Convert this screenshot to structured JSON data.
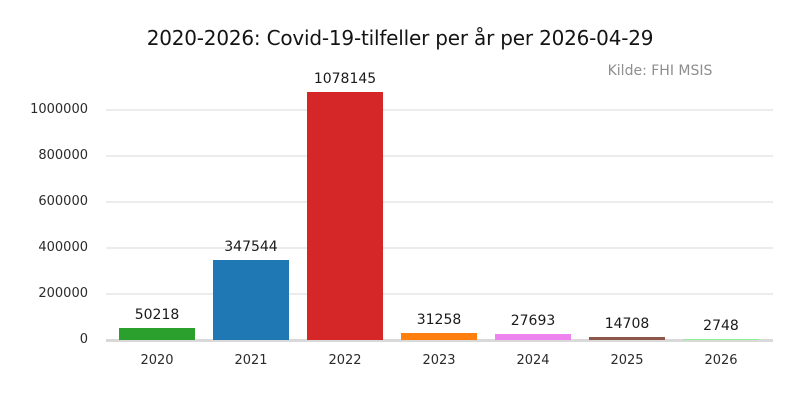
{
  "header": {
    "title": "2020-2026: Covid-19-tilfeller per år per 2026-04-29",
    "source_note": "Kilde: FHI MSIS"
  },
  "chart_data": {
    "type": "bar",
    "title": "2020-2026: Covid-19-tilfeller per år per 2026-04-29",
    "annotation": "Kilde: FHI MSIS",
    "categories": [
      "2020",
      "2021",
      "2022",
      "2023",
      "2024",
      "2025",
      "2026"
    ],
    "values": [
      50218,
      347544,
      1078145,
      31258,
      27693,
      14708,
      2748
    ],
    "data_labels": [
      "50218",
      "347544",
      "1078145",
      "31258",
      "27693",
      "14708",
      "2748"
    ],
    "bar_colors": [
      "#2ca02c",
      "#1f77b4",
      "#d62728",
      "#ff7f0e",
      "#ee82ee",
      "#8c564b",
      "#90ee90"
    ],
    "xlabel": "",
    "ylabel": "",
    "ylim": [
      0,
      1000000
    ],
    "yticks": [
      0,
      200000,
      400000,
      600000,
      800000,
      1000000
    ],
    "ytick_labels": [
      "0",
      "200000",
      "400000",
      "600000",
      "800000",
      "1000000"
    ],
    "grid": "horizontal",
    "legend": "none",
    "colors": {
      "grid": "#ececec",
      "axis_baseline": "#d9d9d9",
      "title_text": "#141414",
      "tick_text": "#2b2b2b",
      "source_text": "#8e8e8e",
      "background": "#ffffff"
    }
  }
}
